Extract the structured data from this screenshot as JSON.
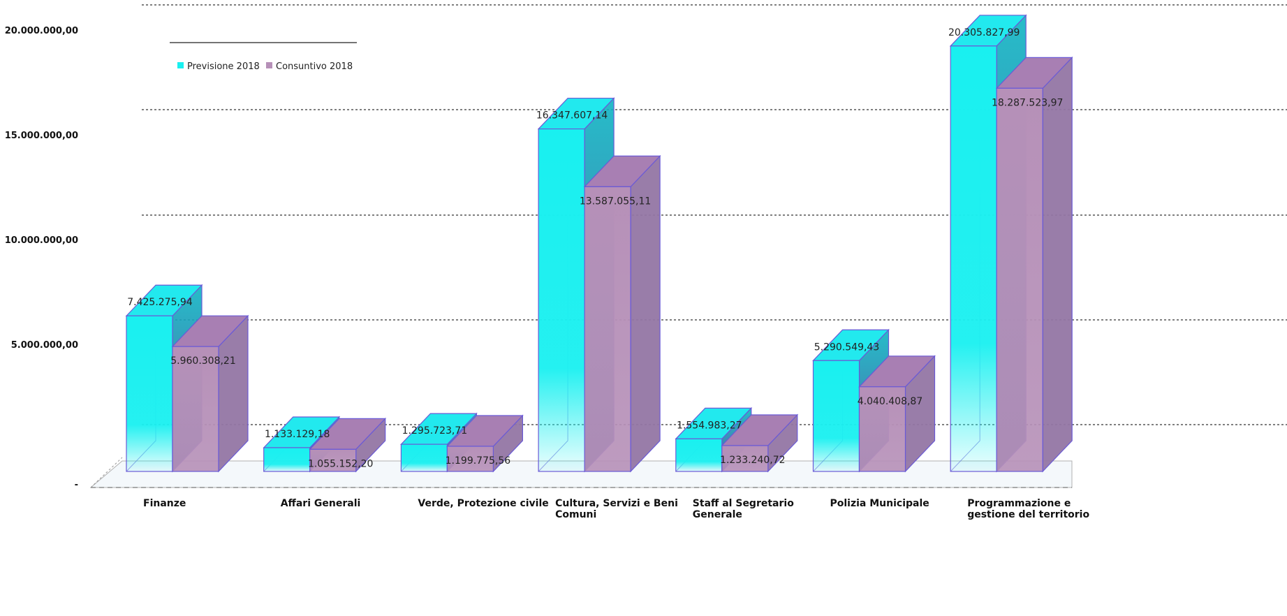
{
  "chart_data": {
    "type": "bar",
    "style": "3d-clustered-column",
    "categories": [
      [
        "Finanze"
      ],
      [
        "Affari Generali"
      ],
      [
        "Verde, Protezione civile"
      ],
      [
        "Cultura, Servizi e Beni",
        "Comuni"
      ],
      [
        "Staff al Segretario",
        "Generale"
      ],
      [
        "Polizia Municipale"
      ],
      [
        "Programmazione e",
        "gestione del territorio"
      ]
    ],
    "series": [
      {
        "name": "Previsione 2018",
        "color": "#19f0f0",
        "values": [
          7425275.94,
          1133129.18,
          1295723.71,
          16347607.14,
          1554983.27,
          5290549.43,
          20305827.99
        ],
        "labels": [
          "7.425.275,94",
          "1.133.129,18",
          "1.295.723,71",
          "16.347.607,14",
          "1.554.983,27",
          "5.290.549,43",
          "20.305.827,99"
        ]
      },
      {
        "name": "Consuntivo 2018",
        "color": "#b690b8",
        "values": [
          5960308.21,
          1055152.2,
          1199775.56,
          13587055.11,
          1233240.72,
          4040408.87,
          18287523.97
        ],
        "labels": [
          "5.960.308,21",
          "1.055.152,20",
          "1.199.775,56",
          "13.587.055,11",
          "1.233.240,72",
          "4.040.408,87",
          "18.287.523,97"
        ]
      }
    ],
    "y_ticks": [
      {
        "value": 0,
        "label": "-"
      },
      {
        "value": 5000000,
        "label": "5.000.000,00"
      },
      {
        "value": 10000000,
        "label": "10.000.000,00"
      },
      {
        "value": 15000000,
        "label": "15.000.000,00"
      },
      {
        "value": 20000000,
        "label": "20.000.000,00"
      }
    ],
    "ylim": [
      0,
      20000000
    ],
    "grid": "dotted-horizontal",
    "legend_position": "top-left",
    "edge_color": "#6a5ad6"
  }
}
